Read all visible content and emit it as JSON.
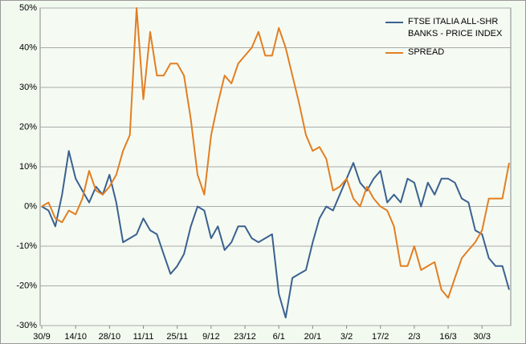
{
  "chart_data": {
    "type": "line",
    "categories": [
      "30/9",
      null,
      null,
      null,
      null,
      "14/10",
      null,
      null,
      null,
      null,
      "28/10",
      null,
      null,
      null,
      null,
      "11/11",
      null,
      null,
      null,
      null,
      "25/11",
      null,
      null,
      null,
      null,
      "9/12",
      null,
      null,
      null,
      null,
      "23/12",
      null,
      null,
      null,
      null,
      "6/1",
      null,
      null,
      null,
      null,
      "20/1",
      null,
      null,
      null,
      null,
      "3/2",
      null,
      null,
      null,
      null,
      "17/2",
      null,
      null,
      null,
      null,
      "2/3",
      null,
      null,
      null,
      null,
      "16/3",
      null,
      null,
      null,
      null,
      "30/3",
      null,
      null,
      null,
      null
    ],
    "series": [
      {
        "name": "FTSE ITALIA ALL-SHR BANKS - PRICE INDEX",
        "color": "#3b6190",
        "values": [
          0,
          -1,
          -5,
          3,
          14,
          7,
          4,
          1,
          5,
          3,
          8,
          1,
          -9,
          -8,
          -7,
          -3,
          -6,
          -7,
          -12,
          -17,
          -15,
          -12,
          -5,
          0,
          -1,
          -8,
          -5,
          -11,
          -9,
          -5,
          -5,
          -8,
          -9,
          -8,
          -7,
          -22,
          -28,
          -18,
          -17,
          -16,
          -9,
          -3,
          0,
          -1,
          3,
          7,
          11,
          6,
          4,
          7,
          9,
          1,
          3,
          1,
          7,
          6,
          0,
          6,
          3,
          7,
          7,
          6,
          2,
          1,
          -6,
          -7,
          -13,
          -15,
          -15,
          -21
        ]
      },
      {
        "name": "SPREAD",
        "color": "#e37e22",
        "values": [
          0,
          1,
          -3,
          -4,
          -1,
          -2,
          2,
          9,
          4,
          3,
          5,
          8,
          14,
          18,
          50,
          27,
          44,
          33,
          33,
          36,
          36,
          33,
          22,
          8,
          3,
          18,
          26,
          33,
          31,
          36,
          38,
          40,
          44,
          38,
          38,
          45,
          40,
          33,
          26,
          18,
          14,
          15,
          12,
          4,
          5,
          7,
          2,
          0,
          5,
          2,
          0,
          -1,
          -5,
          -15,
          -15,
          -10,
          -16,
          -15,
          -14,
          -21,
          -23,
          -18,
          -13,
          -11,
          -9,
          -6,
          2,
          2,
          2,
          11
        ]
      }
    ],
    "ylim": [
      -30,
      50
    ],
    "yticks": [
      {
        "value": -30,
        "label": "-30%"
      },
      {
        "value": -20,
        "label": "-20%"
      },
      {
        "value": -10,
        "label": "-10%"
      },
      {
        "value": 0,
        "label": "0%"
      },
      {
        "value": 10,
        "label": "10%"
      },
      {
        "value": 20,
        "label": "20%"
      },
      {
        "value": 30,
        "label": "30%"
      },
      {
        "value": 40,
        "label": "40%"
      },
      {
        "value": 50,
        "label": "50%"
      }
    ],
    "grid": true,
    "legend": "top-right"
  }
}
